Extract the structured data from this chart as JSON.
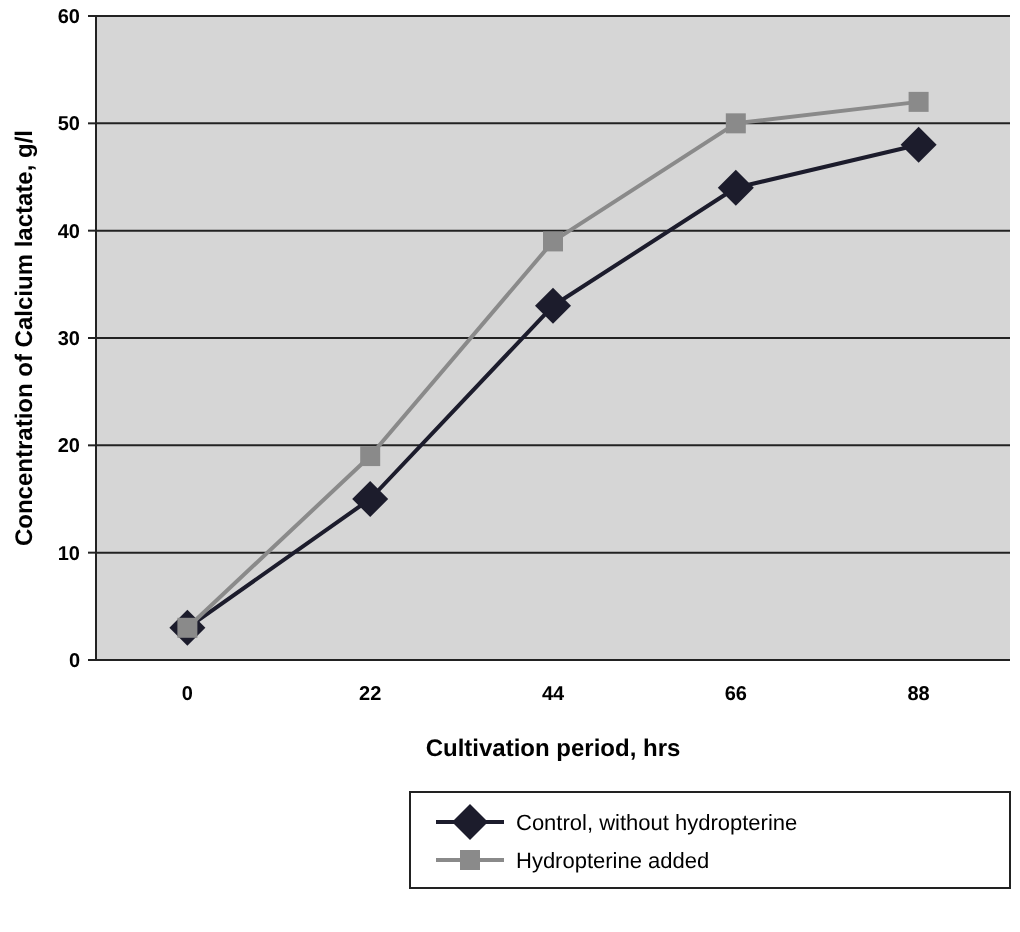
{
  "chart_data": {
    "type": "line",
    "xlabel": "Cultivation period, hrs",
    "ylabel": "Concentration of Calcium lactate, g/l",
    "categories": [
      "0",
      "22",
      "44",
      "66",
      "88"
    ],
    "series": [
      {
        "name": "Control, without hydropterine",
        "color": "#1c1c2c",
        "marker": "diamond",
        "values": [
          3,
          15,
          33,
          44,
          48
        ]
      },
      {
        "name": "Hydropterine added",
        "color": "#8a8a8a",
        "marker": "square",
        "values": [
          3,
          19,
          39,
          50,
          52
        ]
      }
    ],
    "ylim": [
      0,
      60
    ],
    "yticks": [
      0,
      10,
      20,
      30,
      40,
      50,
      60
    ],
    "grid": "y",
    "legend": "bottom"
  }
}
